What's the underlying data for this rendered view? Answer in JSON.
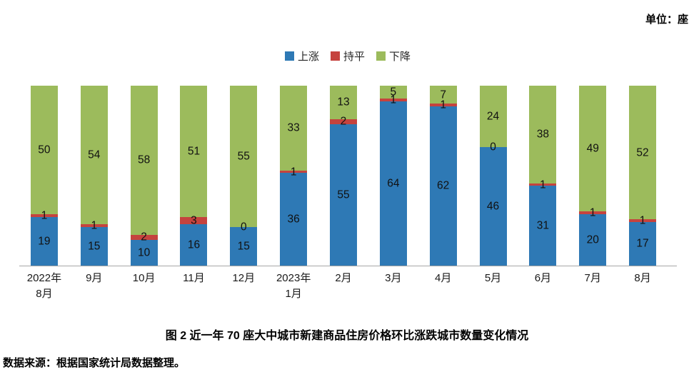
{
  "unit_label": "单位：座",
  "caption": "图 2  近一年 70 座大中城市新建商品住房价格环比涨跌城市数量变化情况",
  "source": "数据来源：根据国家统计局数据整理。",
  "colors": {
    "up": "#2E79B5",
    "flat": "#C5433E",
    "down": "#9CBB5C",
    "axis": "#A6A6A6"
  },
  "chart_data": {
    "type": "bar",
    "stacked": true,
    "title": "图 2  近一年 70 座大中城市新建商品住房价格环比涨跌城市数量变化情况",
    "xlabel": "",
    "ylabel": "",
    "unit": "座",
    "ylim": [
      0,
      70
    ],
    "total_per_bar": 70,
    "grid": false,
    "legend_position": "top",
    "categories": [
      "2022年\n8月",
      "9月",
      "10月",
      "11月",
      "12月",
      "2023年\n1月",
      "2月",
      "3月",
      "4月",
      "5月",
      "6月",
      "7月",
      "8月"
    ],
    "series": [
      {
        "name": "上涨",
        "key": "up",
        "color": "#2E79B5",
        "values": [
          19,
          15,
          10,
          16,
          15,
          36,
          55,
          64,
          62,
          46,
          31,
          20,
          17
        ]
      },
      {
        "name": "持平",
        "key": "flat",
        "color": "#C5433E",
        "values": [
          1,
          1,
          2,
          3,
          0,
          1,
          2,
          1,
          1,
          0,
          1,
          1,
          1
        ]
      },
      {
        "name": "下降",
        "key": "down",
        "color": "#9CBB5C",
        "values": [
          50,
          54,
          58,
          51,
          55,
          33,
          13,
          5,
          7,
          24,
          38,
          49,
          52
        ]
      }
    ]
  }
}
